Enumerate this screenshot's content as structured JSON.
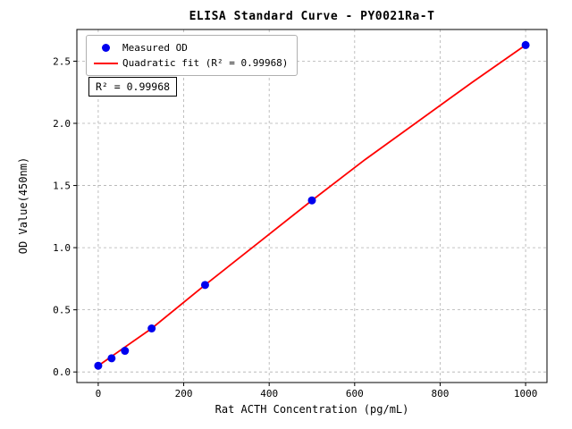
{
  "chart_data": {
    "type": "scatter",
    "title": "ELISA Standard Curve - PY0021Ra-T",
    "xlabel": "Rat ACTH Concentration (pg/mL)",
    "ylabel": "OD Value(450nm)",
    "xlim": [
      -50,
      1050
    ],
    "ylim": [
      -0.085,
      2.755
    ],
    "xticks": [
      0,
      200,
      400,
      600,
      800,
      1000
    ],
    "yticks": [
      0.0,
      0.5,
      1.0,
      1.5,
      2.0,
      2.5
    ],
    "grid": true,
    "grid_style": "dashed",
    "legend_position": "upper-left",
    "annotation": "R² = 0.99968",
    "series": [
      {
        "name": "Measured OD",
        "type": "scatter",
        "color": "#0000ee",
        "x": [
          0,
          31.25,
          62.5,
          125,
          250,
          500,
          1000
        ],
        "y": [
          0.05,
          0.11,
          0.17,
          0.35,
          0.7,
          1.38,
          2.63
        ]
      },
      {
        "name": "Quadratic fit (R² = 0.99968)",
        "type": "line",
        "color": "#ff0000",
        "x": [
          0,
          125,
          250,
          375,
          500,
          625,
          750,
          875,
          1000
        ],
        "y": [
          0.05,
          0.35,
          0.7,
          1.04,
          1.38,
          1.71,
          2.02,
          2.33,
          2.63
        ]
      }
    ],
    "colors": {
      "axis": "#000000",
      "grid": "#b0b0b0",
      "background": "#ffffff"
    }
  }
}
